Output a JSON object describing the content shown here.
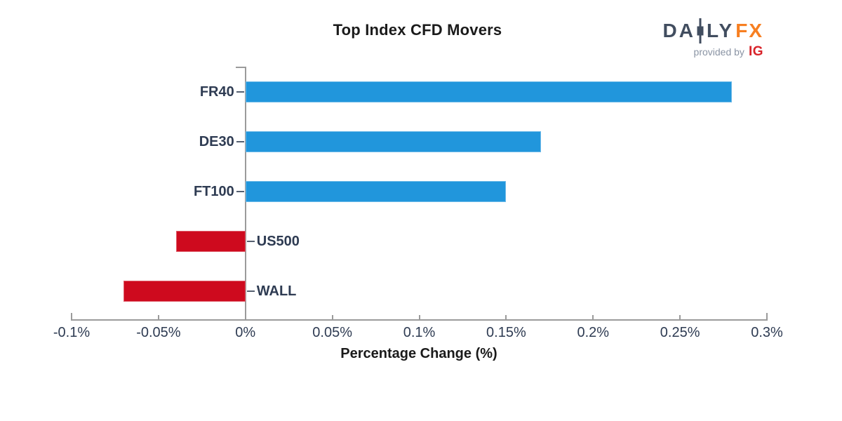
{
  "header": {
    "title": "Top Index CFD Movers",
    "logo": {
      "daily_left": "DA",
      "daily_right": "LY",
      "fx": "FX",
      "provided_by": "provided by",
      "ig": "IG"
    }
  },
  "chart_data": {
    "type": "bar",
    "orientation": "horizontal",
    "title": "Top Index CFD Movers",
    "xlabel": "Percentage Change (%)",
    "categories": [
      "FR40",
      "DE30",
      "FT100",
      "US500",
      "WALL"
    ],
    "values": [
      0.28,
      0.17,
      0.15,
      -0.04,
      -0.07
    ],
    "value_unit": "%",
    "xlim": [
      -0.1,
      0.3
    ],
    "x_ticks": [
      -0.1,
      -0.05,
      0,
      0.05,
      0.1,
      0.15,
      0.2,
      0.25,
      0.3
    ],
    "x_tick_labels": [
      "-0.1%",
      "-0.05%",
      "0%",
      "0.05%",
      "0.1%",
      "0.15%",
      "0.2%",
      "0.25%",
      "0.3%"
    ],
    "positive_color": "#2196dc",
    "negative_color": "#ce0a1e",
    "grid": false,
    "legend": false
  },
  "colors": {
    "positive_bar": "#2196dc",
    "negative_bar": "#ce0a1e",
    "axis": "#9b9b9b",
    "tick_text": "#2e3b52",
    "logo_slate": "#414d5f",
    "logo_orange": "#f77f21",
    "ig_red": "#d8232a"
  }
}
